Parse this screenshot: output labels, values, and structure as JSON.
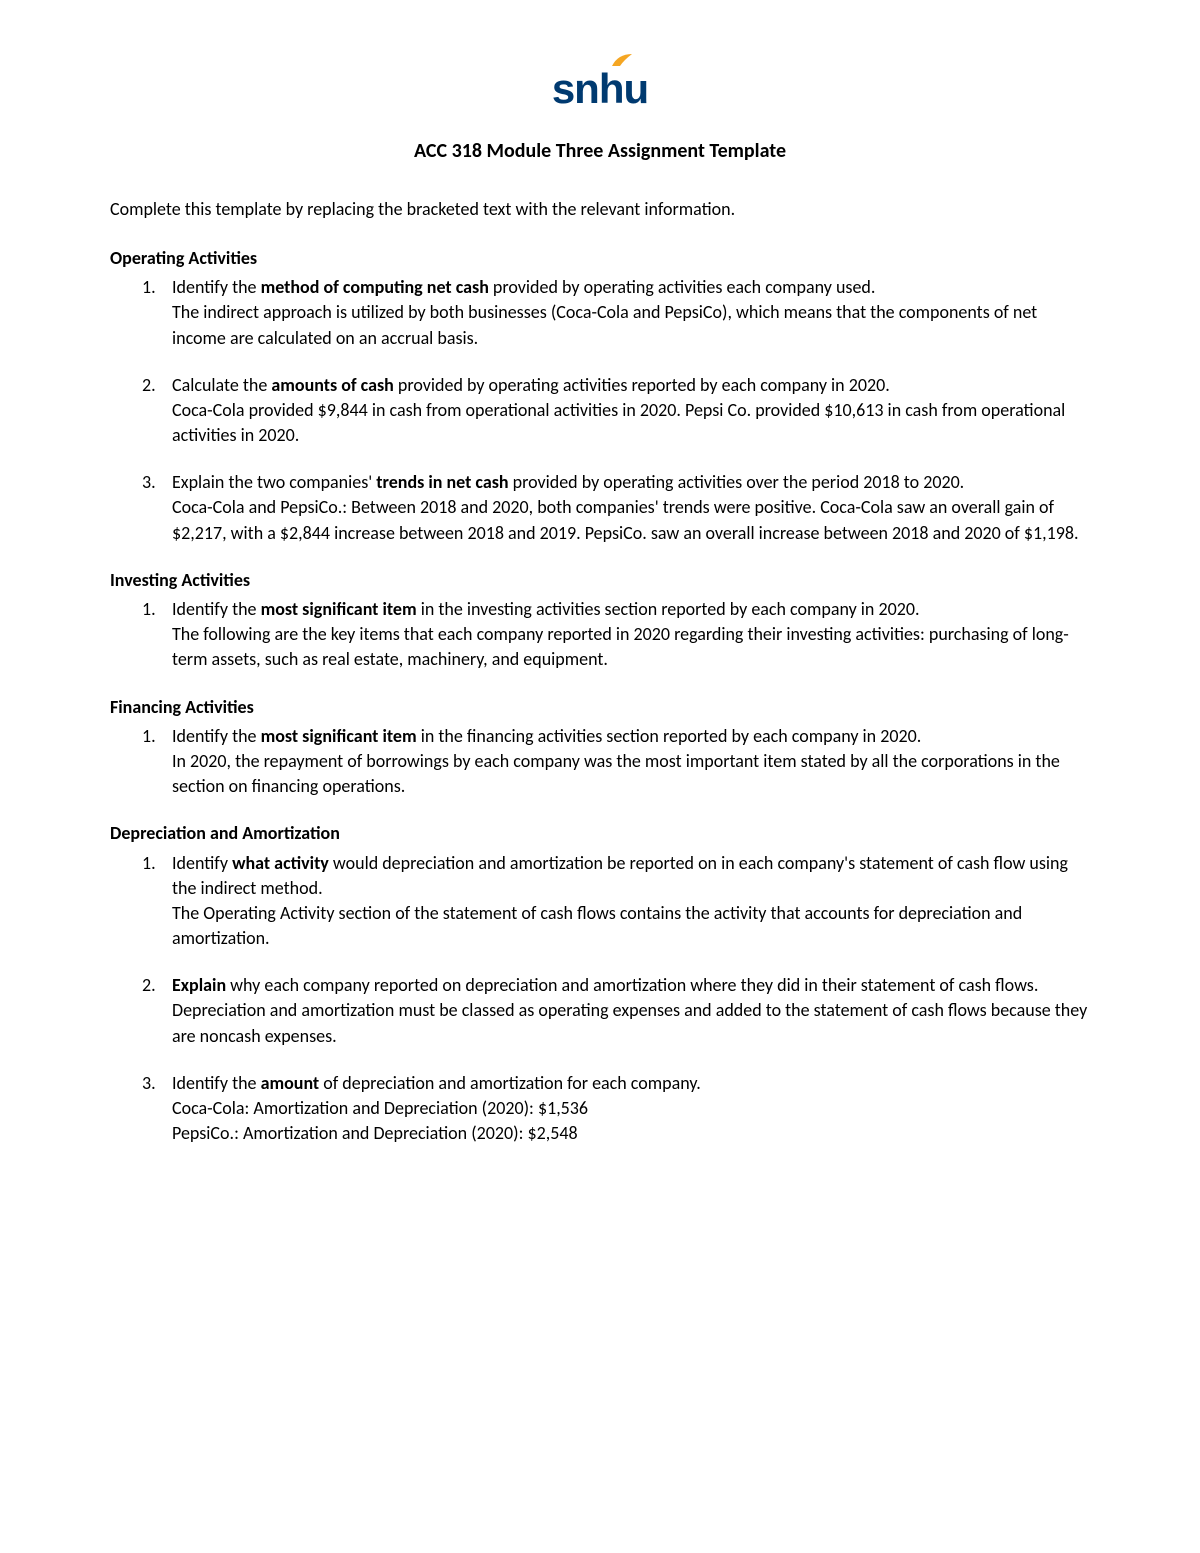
{
  "logo": {
    "text": "snhu",
    "text_color": "#003a70",
    "flame_color": "#f5a623"
  },
  "title": "ACC 318 Module Three Assignment Template",
  "intro": "Complete this template by replacing the bracketed text with the relevant information.",
  "sections": [
    {
      "heading": "Operating Activities",
      "items": [
        {
          "prompt_pre": "Identify the ",
          "prompt_bold": "method of computing net cash",
          "prompt_post": " provided by operating activities each company used.",
          "answer": "The indirect approach is utilized by both businesses (Coca-Cola and PepsiCo), which means that the components of net income are calculated on an accrual basis."
        },
        {
          "prompt_pre": "Calculate the ",
          "prompt_bold": "amounts of cash",
          "prompt_post": " provided by operating activities reported by each company in 2020.",
          "answer": "Coca-Cola provided $9,844 in cash from operational activities in 2020. Pepsi Co. provided $10,613 in cash from operational activities in 2020."
        },
        {
          "prompt_pre": "Explain the two companies' ",
          "prompt_bold": "trends in net cash",
          "prompt_post": " provided by operating activities over the period 2018 to 2020.",
          "answer": "Coca-Cola and PepsiCo.: Between 2018 and 2020, both companies' trends were positive. Coca-Cola saw an overall gain of $2,217, with a $2,844 increase between 2018 and 2019. PepsiCo. saw an overall increase between 2018 and 2020 of $1,198."
        }
      ]
    },
    {
      "heading": "Investing Activities",
      "items": [
        {
          "prompt_pre": "Identify the ",
          "prompt_bold": "most significant item",
          "prompt_post": " in the investing activities section reported by each company in 2020.",
          "answer": "The following are the key items that each company reported in 2020 regarding their investing activities: purchasing of long-term assets, such as real estate, machinery, and equipment."
        }
      ]
    },
    {
      "heading": "Financing Activities",
      "items": [
        {
          "prompt_pre": "Identify the ",
          "prompt_bold": "most significant item",
          "prompt_post": " in the financing activities section reported by each company in 2020.",
          "answer": "In 2020, the repayment of borrowings by each company was the most important item stated by all the corporations in the section on financing operations."
        }
      ]
    },
    {
      "heading": "Depreciation and Amortization",
      "items": [
        {
          "prompt_pre": "Identify ",
          "prompt_bold": "what activity",
          "prompt_post": " would depreciation and amortization be reported on in each company's statement of cash flow using the indirect method.",
          "answer": "The Operating Activity section of the statement of cash flows contains the activity that accounts for depreciation and amortization."
        },
        {
          "prompt_pre": "",
          "prompt_bold": "Explain",
          "prompt_post": " why each company reported on depreciation and amortization where they did in their statement of cash flows.",
          "answer": "Depreciation and amortization must be classed as operating expenses and added to the statement of cash flows because they are noncash expenses."
        },
        {
          "prompt_pre": "Identify the ",
          "prompt_bold": "amount",
          "prompt_post": " of depreciation and amortization for each company.",
          "answer": "Coca-Cola: Amortization and Depreciation (2020): $1,536\nPepsiCo.: Amortization and Depreciation (2020): $2,548"
        }
      ]
    }
  ]
}
